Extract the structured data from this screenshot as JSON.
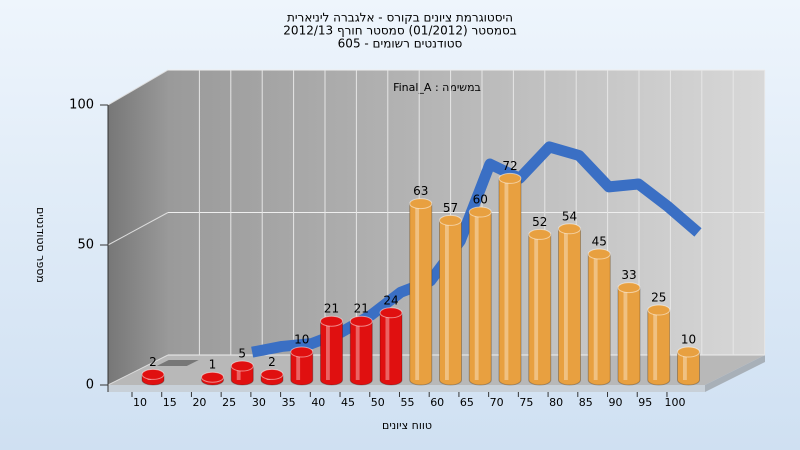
{
  "chart_data": {
    "type": "bar",
    "title_lines": [
      "היסטוגרמת ציונים בקורס - אלגברה ליניארית",
      "בסמסטר  (01/2012)  סמסטר חורף 2012/13",
      "605 - סטודנטים רשומים"
    ],
    "annotation": "Final_A : במשימה",
    "y_label": "מספר סטודנטים",
    "x_label": "טווח ציונים",
    "categories": [
      "10",
      "15",
      "20",
      "25",
      "30",
      "35",
      "40",
      "45",
      "50",
      "55",
      "60",
      "65",
      "70",
      "75",
      "80",
      "85",
      "90",
      "95",
      "100"
    ],
    "values": [
      2,
      0,
      1,
      5,
      2,
      10,
      21,
      21,
      24,
      63,
      57,
      60,
      72,
      52,
      54,
      45,
      33,
      25,
      10
    ],
    "colors": [
      "#e01010",
      "#777777",
      "#e01010",
      "#e01010",
      "#e01010",
      "#e01010",
      "#e01010",
      "#e01010",
      "#e01010",
      "#e8a040",
      "#e8a040",
      "#e8a040",
      "#e8a040",
      "#e8a040",
      "#e8a040",
      "#e8a040",
      "#e8a040",
      "#e8a040",
      "#e8a040"
    ],
    "curve": {
      "color": "#3a6fc4",
      "values": [
        null,
        null,
        null,
        1,
        3,
        4,
        8,
        14,
        22,
        26,
        40,
        67,
        62,
        73,
        70,
        59,
        60,
        52,
        43
      ]
    },
    "ylim": [
      0,
      100
    ],
    "yticks": [
      0,
      50,
      100
    ],
    "grid": true
  }
}
